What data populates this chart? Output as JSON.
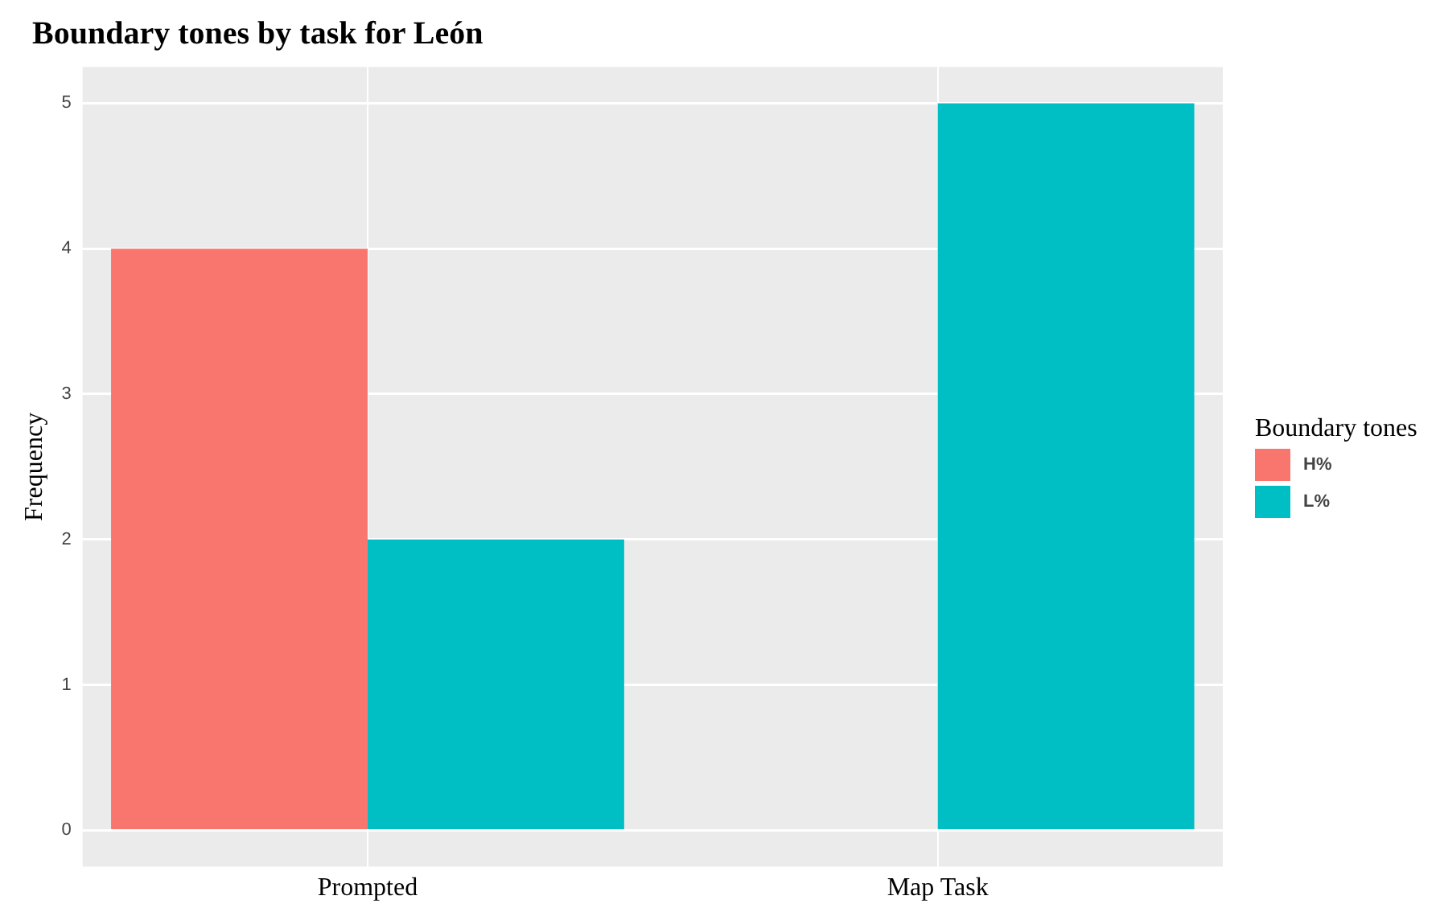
{
  "chart_data": {
    "type": "bar",
    "title": "Boundary tones by task for León",
    "ylabel": "Frequency",
    "legend_title": "Boundary tones",
    "categories": [
      "Prompted",
      "Map Task"
    ],
    "series": [
      {
        "name": "H%",
        "color": "#f8766d",
        "values": [
          4,
          0
        ]
      },
      {
        "name": "L%",
        "color": "#00bfc4",
        "values": [
          2,
          5
        ]
      }
    ],
    "ylim": [
      -0.25,
      5.25
    ],
    "yticks": [
      0,
      1,
      2,
      3,
      4,
      5
    ],
    "grid": true,
    "legend": "right"
  }
}
